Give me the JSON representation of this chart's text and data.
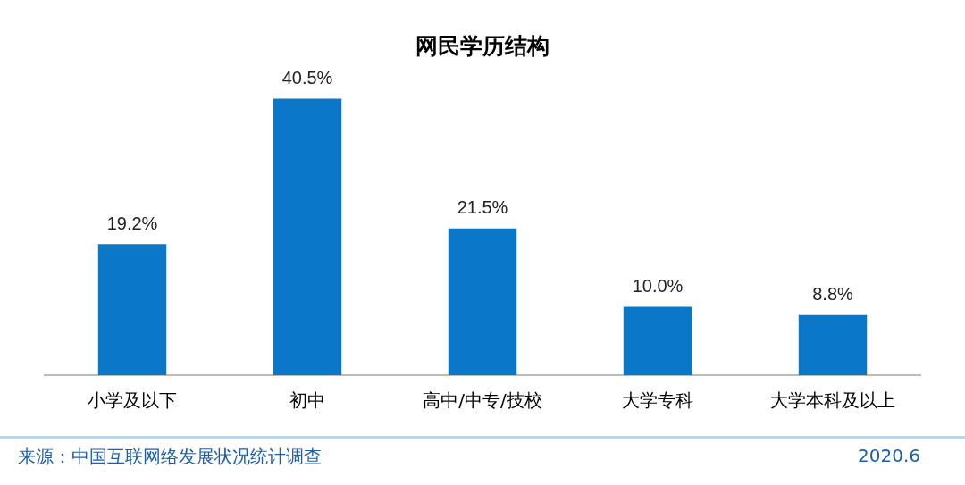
{
  "chart_data": {
    "type": "bar",
    "title": "网民学历结构",
    "categories": [
      "小学及以下",
      "初中",
      "高中/中专/技校",
      "大学专科",
      "大学本科及以上"
    ],
    "values": [
      19.2,
      40.5,
      21.5,
      10.0,
      8.8
    ],
    "color": "#0a77c9",
    "value_labels": [
      "19.2%",
      "40.5%",
      "21.5%",
      "10.0%",
      "8.8%"
    ],
    "tick_labels": "x",
    "grid": false,
    "legend": false,
    "annotations": [
      "来源：中国互联网络发展状况统计调查",
      "2020.6"
    ]
  }
}
